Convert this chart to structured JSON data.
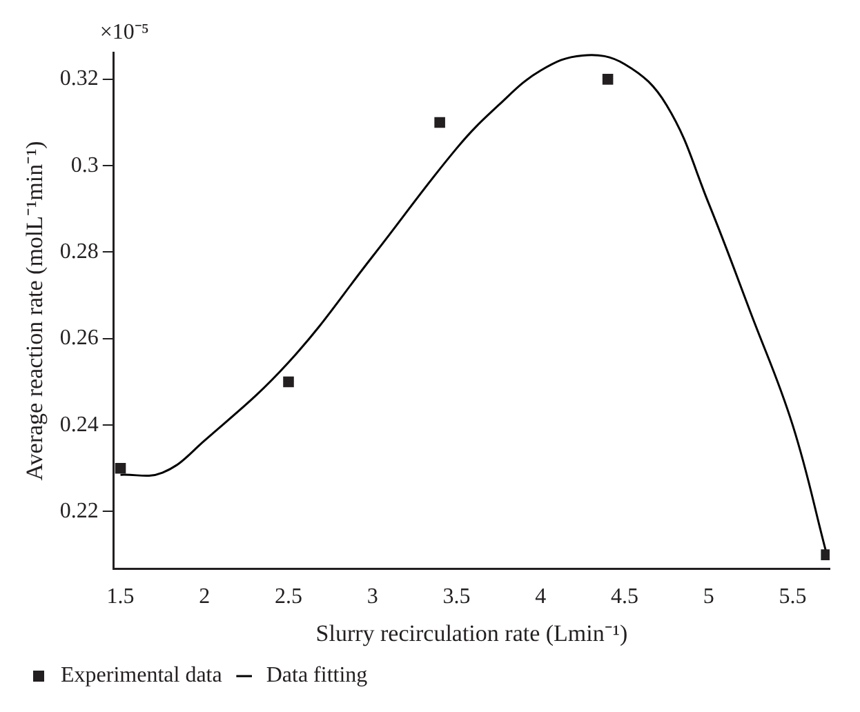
{
  "chart_data": {
    "type": "scatter",
    "xlabel": "Slurry recirculation rate (Lmin⁻¹)",
    "ylabel": "Average reaction rate (molL⁻¹min⁻¹)",
    "annotations": [
      "×10⁻⁵"
    ],
    "xlim": [
      1.46,
      5.72
    ],
    "xticks": [
      1.5,
      2,
      2.5,
      3,
      3.5,
      4,
      4.5,
      5,
      5.5
    ],
    "ylim": [
      0.2067,
      0.3262
    ],
    "yticks": [
      0.22,
      0.24,
      0.26,
      0.28,
      0.3,
      0.32
    ],
    "grid": false,
    "legend": "bottom left",
    "series": [
      {
        "name": "Experimental data",
        "marker": "square",
        "color": "#231f20",
        "x": [
          1.5,
          2.5,
          3.4,
          4.4,
          5.7
        ],
        "values": [
          0.23,
          0.25,
          0.31,
          0.32,
          0.21
        ]
      },
      {
        "name": "Data fitting",
        "type": "line",
        "marker": "none",
        "color": "#000000",
        "line_style": "solid",
        "x": [
          1.5,
          1.75,
          2.0,
          2.5,
          3.0,
          3.5,
          3.75,
          4.0,
          4.25,
          4.5,
          4.75,
          5.0,
          5.25,
          5.5,
          5.7
        ],
        "values": [
          0.2285,
          0.229,
          0.2364,
          0.2545,
          0.279,
          0.304,
          0.314,
          0.322,
          0.3255,
          0.3235,
          0.314,
          0.2913,
          0.266,
          0.24,
          0.2105
        ]
      }
    ]
  }
}
